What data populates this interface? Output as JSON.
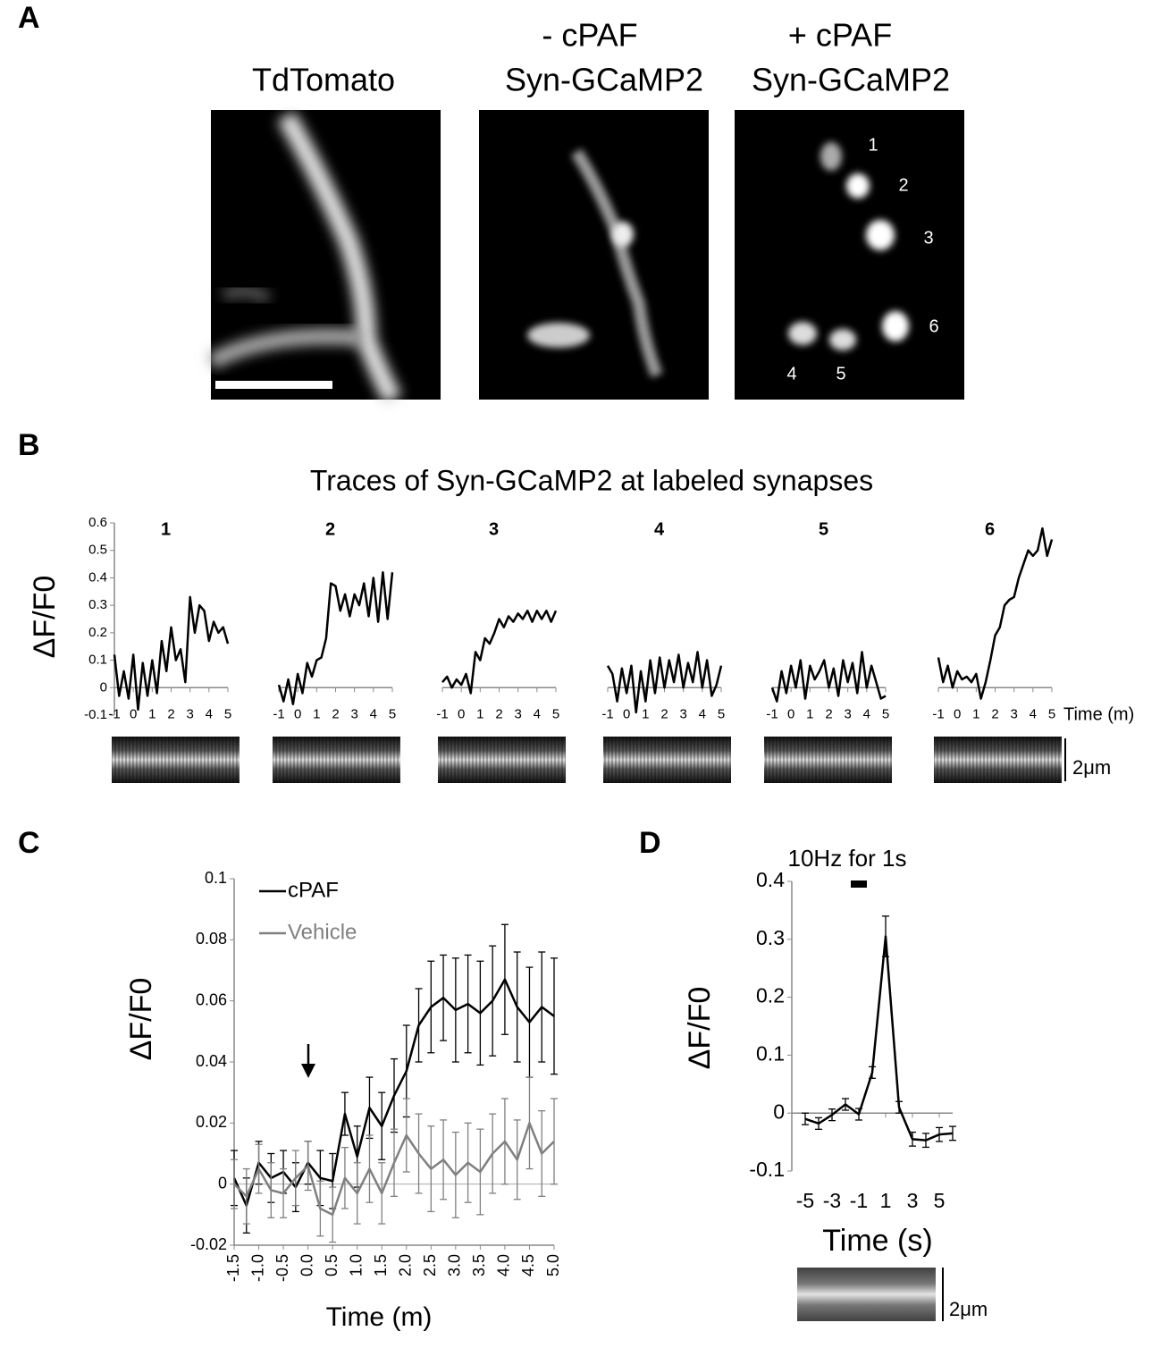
{
  "panel_labels": [
    "A",
    "B",
    "C",
    "D"
  ],
  "panel_a": {
    "titles": [
      "TdTomato",
      "- cPAF",
      "Syn-GCaMP2",
      "+ cPAF",
      "Syn-GCaMP2"
    ],
    "synapse_labels": [
      "1",
      "2",
      "3",
      "4",
      "5",
      "6"
    ]
  },
  "panel_b": {
    "title": "Traces of Syn-GCaMP2 at labeled synapses",
    "scale_label": "2μm"
  },
  "panel_d": {
    "scale_label": "2μm"
  },
  "chart_data": [
    {
      "type": "line",
      "title": "1",
      "y_label": "ΔF/F0",
      "xlim": [
        -1,
        5
      ],
      "ylim": [
        -0.1,
        0.6
      ],
      "xticks": [
        -1,
        0,
        1,
        2,
        3,
        4,
        5
      ],
      "yticks": [
        -0.1,
        0,
        0.1,
        0.2,
        0.3,
        0.4,
        0.5,
        0.6
      ],
      "x": [
        -1,
        -0.75,
        -0.5,
        -0.25,
        0,
        0.25,
        0.5,
        0.75,
        1,
        1.25,
        1.5,
        1.75,
        2,
        2.25,
        2.5,
        2.75,
        3,
        3.25,
        3.5,
        3.75,
        4,
        4.25,
        4.5,
        4.75,
        5
      ],
      "series": [
        {
          "color": "#000000",
          "values": [
            0.12,
            -0.03,
            0.06,
            -0.04,
            0.12,
            -0.08,
            0.09,
            -0.03,
            0.1,
            -0.02,
            0.17,
            0.06,
            0.22,
            0.1,
            0.14,
            0.02,
            0.33,
            0.2,
            0.3,
            0.28,
            0.17,
            0.24,
            0.2,
            0.22,
            0.16
          ]
        }
      ]
    },
    {
      "type": "line",
      "title": "2",
      "xlim": [
        -1,
        5
      ],
      "ylim": [
        -0.1,
        0.6
      ],
      "xticks": [
        -1,
        0,
        1,
        2,
        3,
        4,
        5
      ],
      "x": [
        -1,
        -0.75,
        -0.5,
        -0.25,
        0,
        0.25,
        0.5,
        0.75,
        1,
        1.25,
        1.5,
        1.75,
        2,
        2.25,
        2.5,
        2.75,
        3,
        3.25,
        3.5,
        3.75,
        4,
        4.25,
        4.5,
        4.75,
        5
      ],
      "series": [
        {
          "color": "#000000",
          "values": [
            0.01,
            -0.05,
            0.03,
            -0.06,
            0.05,
            -0.02,
            0.09,
            0.04,
            0.1,
            0.11,
            0.18,
            0.38,
            0.37,
            0.28,
            0.34,
            0.26,
            0.34,
            0.3,
            0.38,
            0.26,
            0.4,
            0.24,
            0.42,
            0.25,
            0.42
          ]
        }
      ]
    },
    {
      "type": "line",
      "title": "3",
      "xlim": [
        -1,
        5
      ],
      "ylim": [
        -0.1,
        0.6
      ],
      "xticks": [
        -1,
        0,
        1,
        2,
        3,
        4,
        5
      ],
      "x": [
        -1,
        -0.75,
        -0.5,
        -0.25,
        0,
        0.25,
        0.5,
        0.75,
        1,
        1.25,
        1.5,
        1.75,
        2,
        2.25,
        2.5,
        2.75,
        3,
        3.25,
        3.5,
        3.75,
        4,
        4.25,
        4.5,
        4.75,
        5
      ],
      "series": [
        {
          "color": "#000000",
          "values": [
            0.02,
            0.04,
            0.0,
            0.03,
            0.01,
            0.05,
            -0.02,
            0.13,
            0.1,
            0.18,
            0.16,
            0.2,
            0.25,
            0.22,
            0.26,
            0.24,
            0.27,
            0.25,
            0.28,
            0.24,
            0.28,
            0.25,
            0.28,
            0.24,
            0.28
          ]
        }
      ]
    },
    {
      "type": "line",
      "title": "4",
      "xlim": [
        -1,
        5
      ],
      "ylim": [
        -0.1,
        0.6
      ],
      "xticks": [
        -1,
        0,
        1,
        2,
        3,
        4,
        5
      ],
      "x": [
        -1,
        -0.75,
        -0.5,
        -0.25,
        0,
        0.25,
        0.5,
        0.75,
        1,
        1.25,
        1.5,
        1.75,
        2,
        2.25,
        2.5,
        2.75,
        3,
        3.25,
        3.5,
        3.75,
        4,
        4.25,
        4.5,
        4.75,
        5
      ],
      "series": [
        {
          "color": "#000000",
          "values": [
            0.08,
            0.05,
            -0.05,
            0.07,
            -0.02,
            0.08,
            -0.09,
            0.06,
            -0.05,
            0.1,
            -0.02,
            0.11,
            0.0,
            0.1,
            0.02,
            0.12,
            0.0,
            0.09,
            0.02,
            0.13,
            0.0,
            0.1,
            -0.03,
            0.01,
            0.08
          ]
        }
      ]
    },
    {
      "type": "line",
      "title": "5",
      "xlim": [
        -1,
        5
      ],
      "ylim": [
        -0.1,
        0.6
      ],
      "xticks": [
        -1,
        0,
        1,
        2,
        3,
        4,
        5
      ],
      "x": [
        -1,
        -0.75,
        -0.5,
        -0.25,
        0,
        0.25,
        0.5,
        0.75,
        1,
        1.25,
        1.5,
        1.75,
        2,
        2.25,
        2.5,
        2.75,
        3,
        3.25,
        3.5,
        3.75,
        4,
        4.25,
        4.5,
        4.75,
        5
      ],
      "series": [
        {
          "color": "#000000",
          "values": [
            0.0,
            -0.05,
            0.06,
            -0.02,
            0.08,
            0.0,
            0.1,
            -0.04,
            0.08,
            0.03,
            0.06,
            0.1,
            0.0,
            0.07,
            -0.03,
            0.1,
            0.02,
            0.09,
            -0.02,
            0.13,
            0.0,
            0.08,
            0.02,
            -0.04,
            -0.03
          ]
        }
      ]
    },
    {
      "type": "line",
      "title": "6",
      "x_label": "Time (m)",
      "xlim": [
        -1,
        5
      ],
      "ylim": [
        -0.1,
        0.6
      ],
      "xticks": [
        -1,
        0,
        1,
        2,
        3,
        4,
        5
      ],
      "x": [
        -1,
        -0.75,
        -0.5,
        -0.25,
        0,
        0.25,
        0.5,
        0.75,
        1,
        1.25,
        1.5,
        1.75,
        2,
        2.25,
        2.5,
        2.75,
        3,
        3.25,
        3.5,
        3.75,
        4,
        4.25,
        4.5,
        4.75,
        5
      ],
      "series": [
        {
          "color": "#000000",
          "values": [
            0.11,
            0.02,
            0.08,
            0.0,
            0.06,
            0.03,
            0.04,
            0.02,
            0.05,
            -0.04,
            0.02,
            0.1,
            0.19,
            0.22,
            0.3,
            0.32,
            0.33,
            0.4,
            0.45,
            0.5,
            0.48,
            0.5,
            0.58,
            0.48,
            0.54
          ]
        }
      ]
    },
    {
      "type": "line",
      "x_label": "Time (m)",
      "y_label": "ΔF/F0",
      "xlim": [
        -1.5,
        5
      ],
      "ylim": [
        -0.02,
        0.1
      ],
      "xticks": [
        -1.5,
        {
          "value": -1,
          "label": "-1.0"
        },
        -0.5,
        {
          "value": 0,
          "label": "0.0"
        },
        0.5,
        {
          "value": 1,
          "label": "1.0"
        },
        1.5,
        {
          "value": 2,
          "label": "2.0"
        },
        2.5,
        {
          "value": 3,
          "label": "3.0"
        },
        3.5,
        {
          "value": 4,
          "label": "4.0"
        },
        4.5,
        {
          "value": 5,
          "label": "5.0"
        }
      ],
      "yticks": [
        -0.02,
        0,
        0.02,
        0.04,
        0.06,
        0.08,
        0.1
      ],
      "x": [
        -1.5,
        -1.25,
        -1,
        -0.75,
        -0.5,
        -0.25,
        0,
        0.25,
        0.5,
        0.75,
        1,
        1.25,
        1.5,
        1.75,
        2,
        2.25,
        2.5,
        2.75,
        3,
        3.25,
        3.5,
        3.75,
        4,
        4.25,
        4.5,
        4.75,
        5
      ],
      "series": [
        {
          "name": "cPAF",
          "color": "#000000",
          "values": [
            0.002,
            -0.007,
            0.007,
            0.002,
            0.004,
            -0.001,
            0.007,
            0.002,
            0.001,
            0.023,
            0.009,
            0.025,
            0.019,
            0.029,
            0.037,
            0.052,
            0.058,
            0.061,
            0.057,
            0.059,
            0.056,
            0.06,
            0.067,
            0.058,
            0.053,
            0.058,
            0.055
          ],
          "errors": [
            0.009,
            0.009,
            0.007,
            0.008,
            0.007,
            0.008,
            0.007,
            0.009,
            0.009,
            0.007,
            0.01,
            0.01,
            0.011,
            0.012,
            0.015,
            0.012,
            0.015,
            0.014,
            0.017,
            0.016,
            0.017,
            0.018,
            0.018,
            0.018,
            0.018,
            0.018,
            0.019
          ]
        },
        {
          "name": "Vehicle",
          "color": "#808080",
          "values": [
            0.0,
            -0.004,
            0.005,
            -0.002,
            -0.003,
            0.002,
            0.006,
            -0.008,
            -0.01,
            0.002,
            -0.003,
            0.005,
            -0.003,
            0.007,
            0.016,
            0.01,
            0.005,
            0.008,
            0.003,
            0.007,
            0.004,
            0.01,
            0.014,
            0.008,
            0.02,
            0.01,
            0.014
          ],
          "errors": [
            0.008,
            0.009,
            0.008,
            0.009,
            0.008,
            0.009,
            0.008,
            0.009,
            0.009,
            0.01,
            0.01,
            0.011,
            0.01,
            0.011,
            0.012,
            0.013,
            0.014,
            0.013,
            0.014,
            0.013,
            0.014,
            0.013,
            0.014,
            0.013,
            0.015,
            0.014,
            0.014
          ]
        }
      ]
    },
    {
      "type": "line",
      "x_label": "Time (s)",
      "y_label": "ΔF/F0",
      "annotation": "10Hz for 1s",
      "xlim": [
        -6,
        6
      ],
      "ylim": [
        -0.1,
        0.4
      ],
      "xticks": [
        -5,
        -3,
        -1,
        1,
        3,
        5
      ],
      "yticks": [
        -0.1,
        0,
        0.1,
        0.2,
        0.3,
        0.4
      ],
      "x": [
        -5,
        -4,
        -3,
        -2,
        -1,
        0,
        1,
        2,
        3,
        4,
        5,
        6
      ],
      "series": [
        {
          "color": "#000000",
          "values": [
            -0.01,
            -0.018,
            -0.003,
            0.015,
            -0.002,
            0.07,
            0.305,
            0.01,
            -0.045,
            -0.047,
            -0.037,
            -0.035
          ],
          "errors": [
            0.01,
            0.01,
            0.01,
            0.01,
            0.01,
            0.01,
            0.035,
            0.01,
            0.012,
            0.012,
            0.012,
            0.012
          ]
        }
      ]
    }
  ]
}
